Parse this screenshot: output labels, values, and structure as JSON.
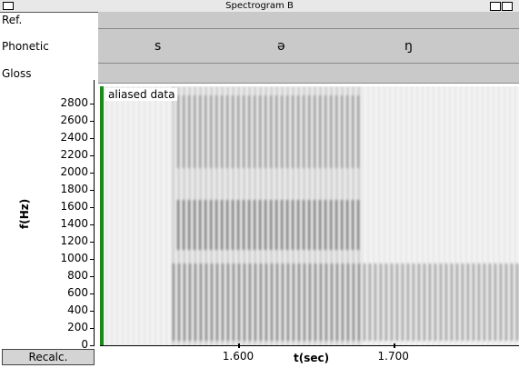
{
  "window": {
    "title": "Spectrogram B",
    "button": "Recalc."
  },
  "tiers": [
    {
      "label": "Ref.",
      "items": []
    },
    {
      "label": "Phonetic",
      "items": [
        "s",
        "ə",
        "ŋ"
      ]
    },
    {
      "label": "Gloss",
      "items": []
    }
  ],
  "spectrogram": {
    "annotation": "aliased data",
    "ylabel": "f(Hz)",
    "xlabel": "t(sec)",
    "ylim": [
      0,
      3000
    ],
    "yticks": [
      0,
      200,
      400,
      600,
      800,
      1000,
      1200,
      1400,
      1600,
      1800,
      2000,
      2200,
      2400,
      2600,
      2800
    ],
    "xlim": [
      1.511,
      1.781
    ],
    "xticks": [
      {
        "value": 1.6,
        "label": "1.600"
      },
      {
        "value": 1.7,
        "label": "1.700"
      }
    ]
  }
}
